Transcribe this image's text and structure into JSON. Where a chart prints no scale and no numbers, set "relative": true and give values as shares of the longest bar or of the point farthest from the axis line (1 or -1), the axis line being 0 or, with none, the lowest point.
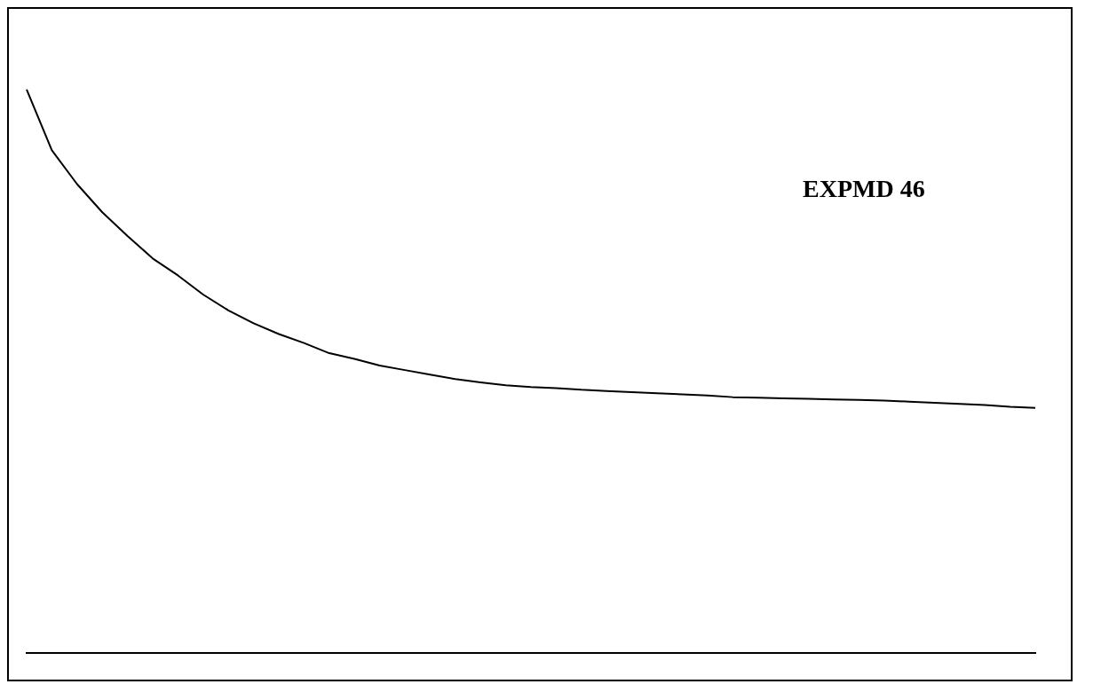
{
  "chart_data": {
    "type": "line",
    "relative": true,
    "color": "#000000",
    "annotations": [
      "EXPMD 46"
    ],
    "grid": false,
    "legend": false,
    "marker": "none",
    "categories": [
      null,
      null,
      null,
      null,
      null,
      null,
      null,
      null,
      null,
      null,
      null,
      null,
      null,
      null,
      null,
      null,
      null,
      null,
      null,
      null,
      null,
      null,
      null,
      null,
      null,
      null,
      null,
      null,
      null,
      null,
      null,
      null,
      null,
      null,
      null,
      null,
      null,
      null,
      null,
      null,
      null
    ],
    "values": [
      1.0,
      0.892,
      0.832,
      0.782,
      0.74,
      0.7,
      0.67,
      0.636,
      0.608,
      0.585,
      0.566,
      0.55,
      0.532,
      0.522,
      0.51,
      0.502,
      0.494,
      0.486,
      0.48,
      0.475,
      0.472,
      0.47,
      0.467,
      0.465,
      0.463,
      0.461,
      0.459,
      0.457,
      0.454,
      0.453,
      0.452,
      0.451,
      0.45,
      0.449,
      0.448,
      0.446,
      0.444,
      0.442,
      0.44,
      0.437,
      0.435
    ]
  }
}
